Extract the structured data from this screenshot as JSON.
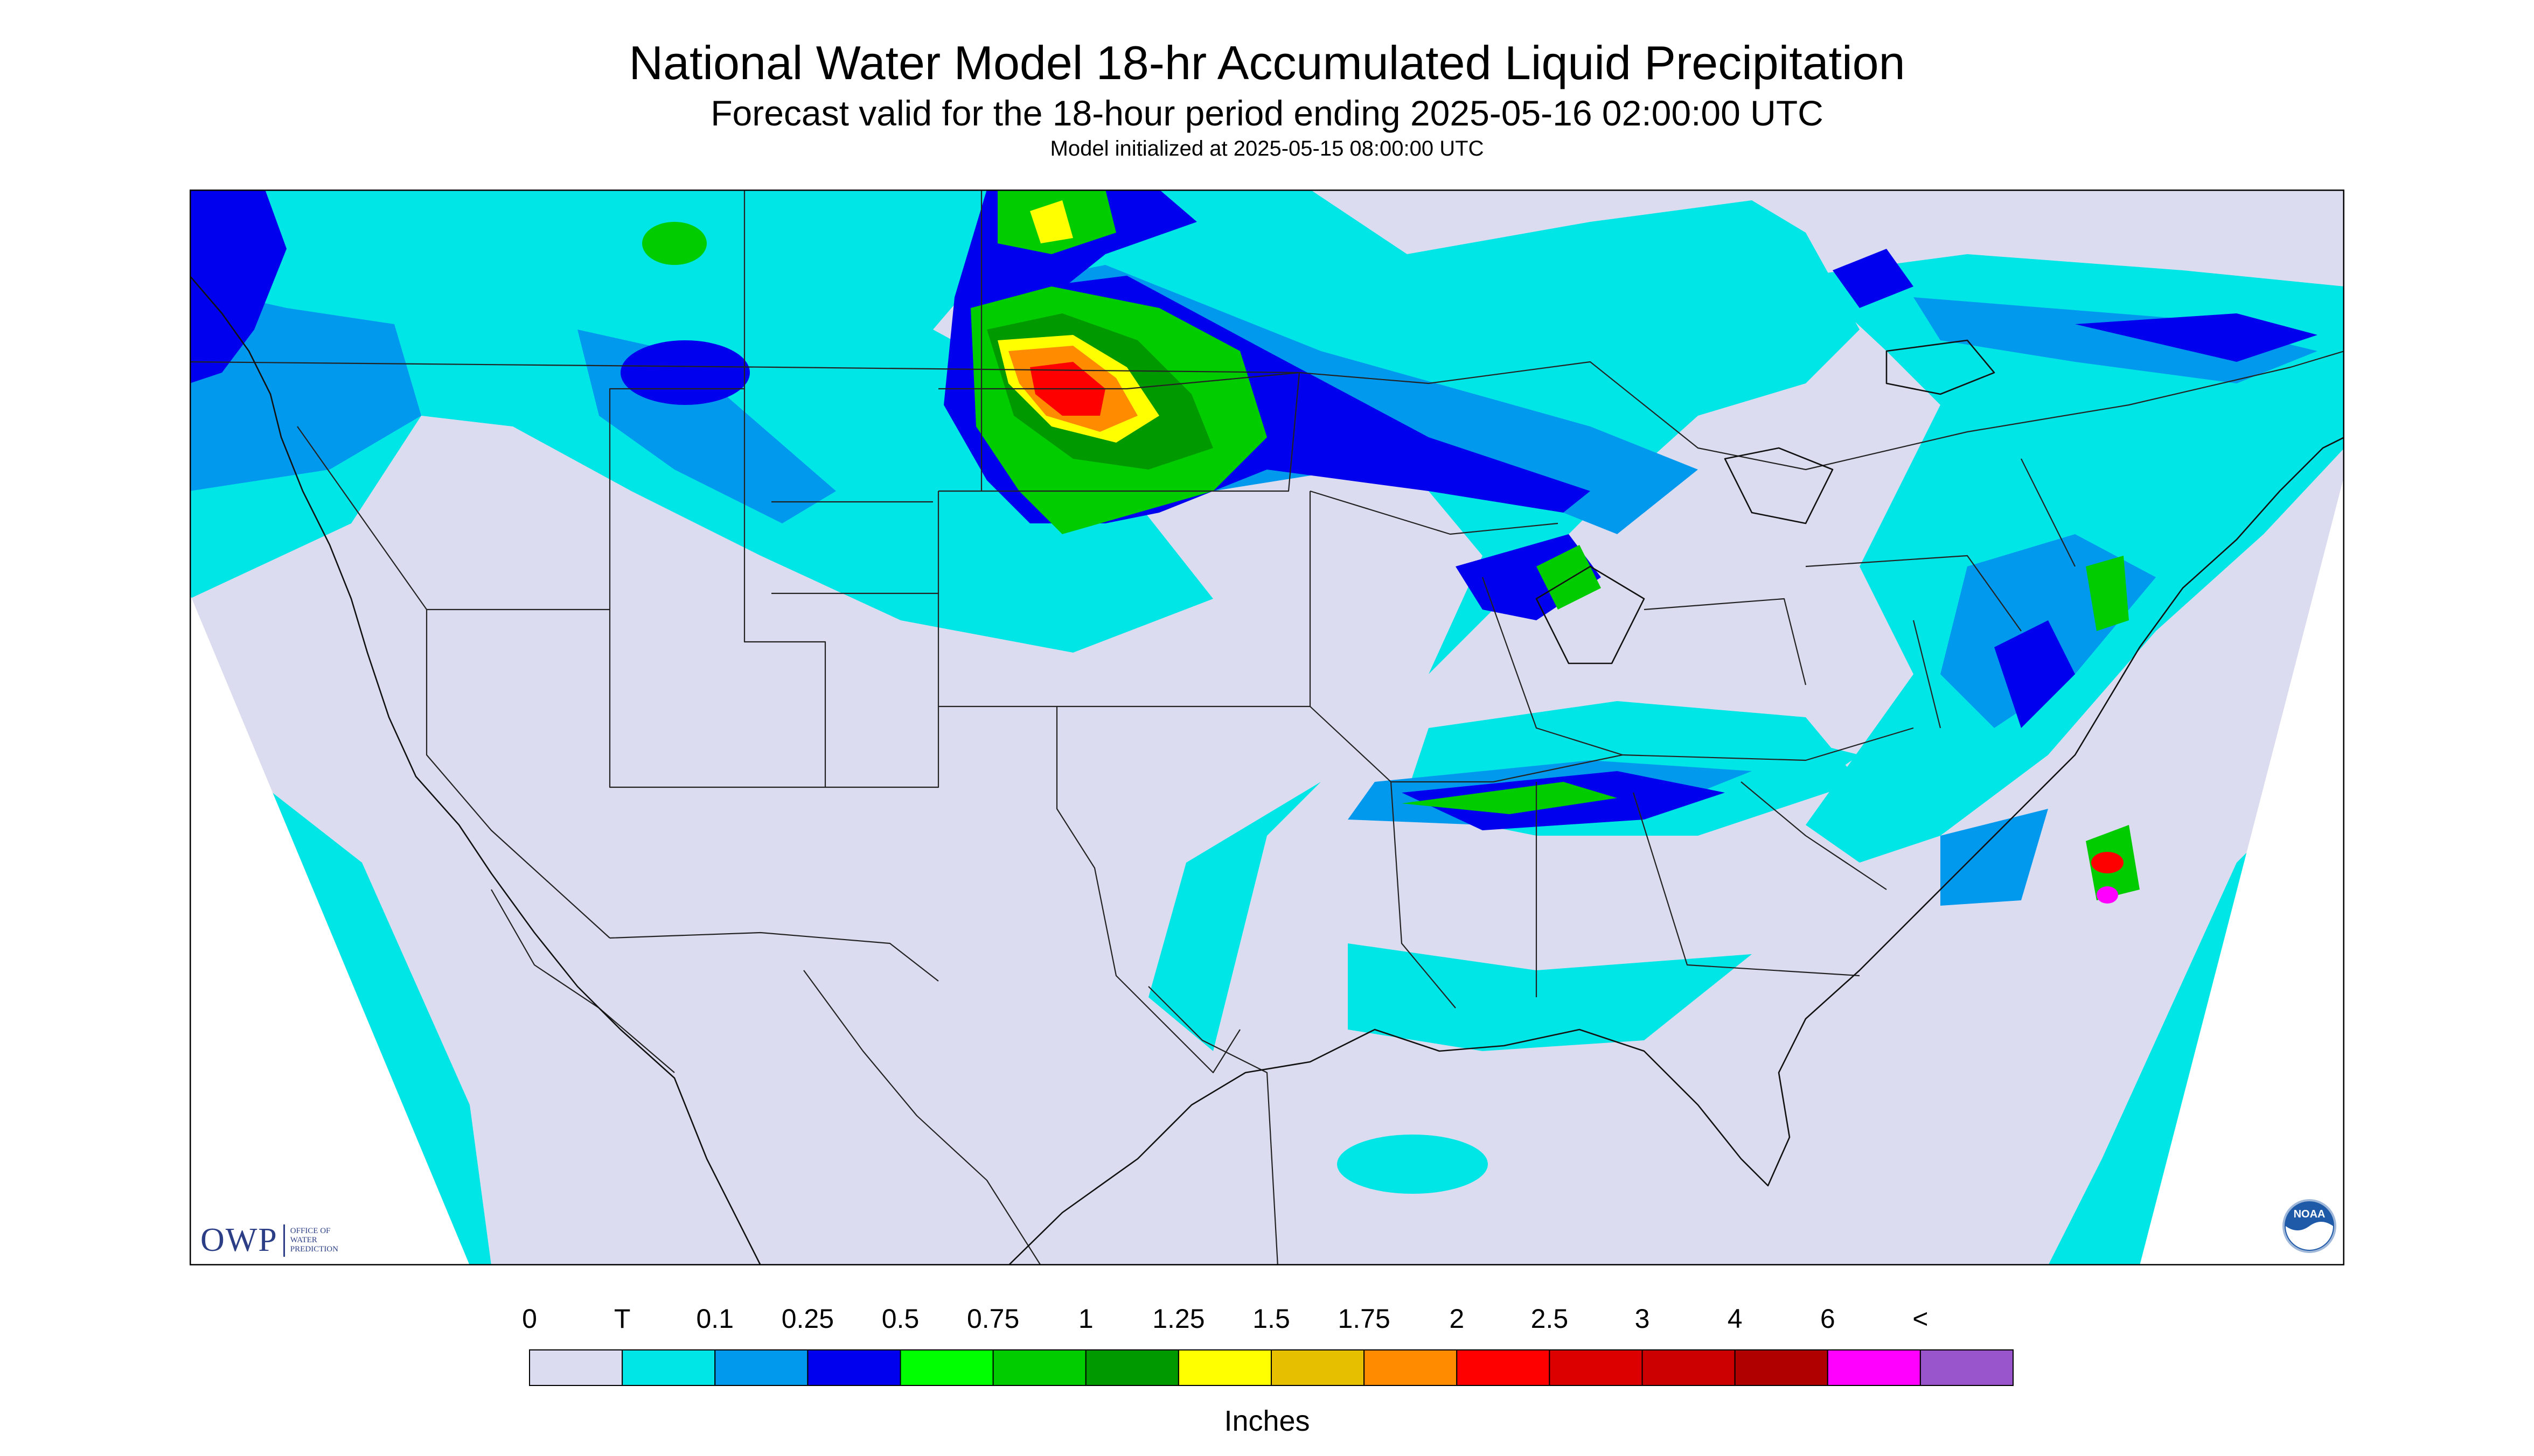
{
  "header": {
    "title": "National Water Model 18-hr Accumulated Liquid Precipitation",
    "subtitle": "Forecast valid for the 18-hour period ending 2025-05-16 02:00:00 UTC",
    "init": "Model initialized at 2025-05-15 08:00:00 UTC"
  },
  "map": {
    "background": "#dcdcf0",
    "outside": "#ffffff",
    "border": "#000000"
  },
  "legend": {
    "labels": [
      "0",
      "T",
      "0.1",
      "0.25",
      "0.5",
      "0.75",
      "1",
      "1.25",
      "1.5",
      "1.75",
      "2",
      "2.5",
      "3",
      "4",
      "6",
      "<"
    ],
    "colors": [
      "#dcdcf0",
      "#00e5e5",
      "#0099ee",
      "#0000ee",
      "#00ff00",
      "#00cc00",
      "#009900",
      "#ffff00",
      "#e6bf00",
      "#ff8c00",
      "#ff0000",
      "#dd0000",
      "#cc0000",
      "#b00000",
      "#ff00ff",
      "#9955cc"
    ],
    "units": "Inches"
  },
  "logos": {
    "owp_mark": "OWP",
    "owp_text": [
      "OFFICE OF",
      "WATER",
      "PREDICTION"
    ],
    "noaa_text": "NOAA"
  }
}
